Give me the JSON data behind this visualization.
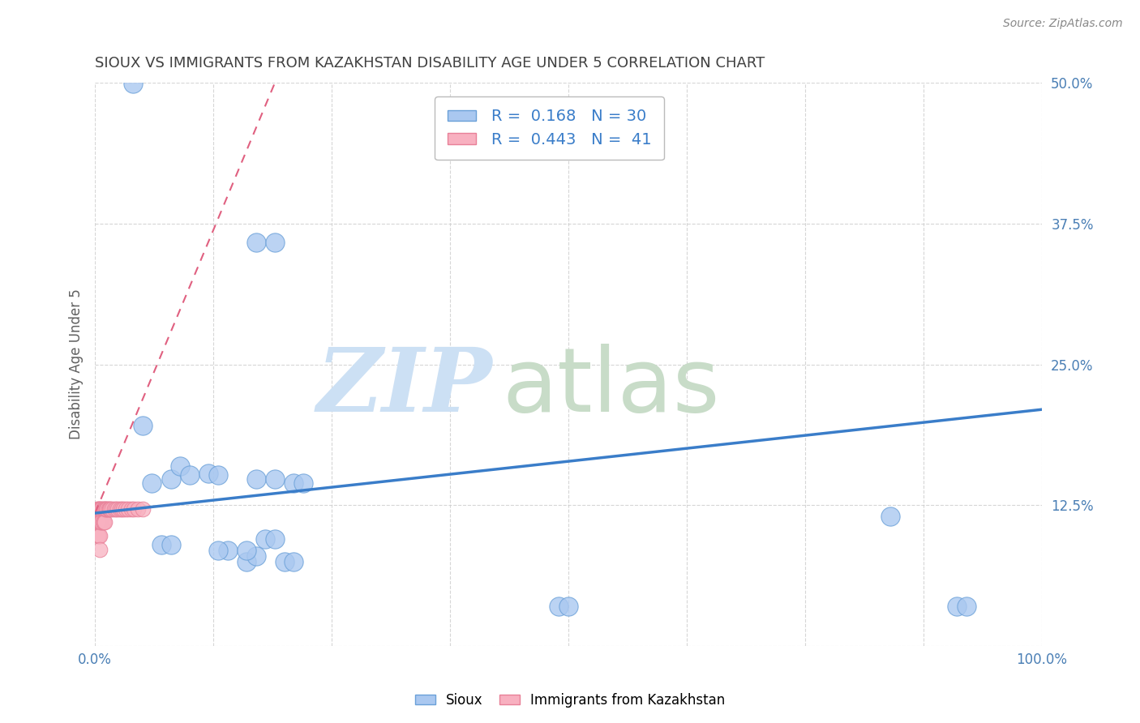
{
  "title": "SIOUX VS IMMIGRANTS FROM KAZAKHSTAN DISABILITY AGE UNDER 5 CORRELATION CHART",
  "source": "Source: ZipAtlas.com",
  "ylabel": "Disability Age Under 5",
  "xlim": [
    0,
    1.0
  ],
  "ylim": [
    0,
    0.5
  ],
  "xticks": [
    0.0,
    0.125,
    0.25,
    0.375,
    0.5,
    0.625,
    0.75,
    0.875,
    1.0
  ],
  "xticklabels": [
    "0.0%",
    "",
    "",
    "",
    "",
    "",
    "",
    "",
    "100.0%"
  ],
  "yticks": [
    0.0,
    0.125,
    0.25,
    0.375,
    0.5
  ],
  "yticklabels": [
    "",
    "12.5%",
    "25.0%",
    "37.5%",
    "50.0%"
  ],
  "sioux_R": 0.168,
  "sioux_N": 30,
  "kaz_R": 0.443,
  "kaz_N": 41,
  "sioux_color": "#aac8f0",
  "sioux_edge_color": "#6aa0d8",
  "sioux_line_color": "#3a7dc9",
  "kaz_color": "#f8b0c0",
  "kaz_edge_color": "#e88098",
  "kaz_line_color": "#e06080",
  "legend_text_color": "#3a7dc9",
  "watermark_zip_color": "#cce0f4",
  "watermark_atlas_color": "#c8dcc8",
  "background_color": "#ffffff",
  "grid_color": "#cccccc",
  "title_color": "#404040",
  "sioux_x": [
    0.04,
    0.17,
    0.19,
    0.05,
    0.06,
    0.08,
    0.09,
    0.1,
    0.12,
    0.13,
    0.17,
    0.19,
    0.21,
    0.22,
    0.18,
    0.19,
    0.07,
    0.08,
    0.14,
    0.16,
    0.17,
    0.2,
    0.21,
    0.49,
    0.5,
    0.84,
    0.91,
    0.92,
    0.13,
    0.16
  ],
  "sioux_y": [
    0.499,
    0.358,
    0.358,
    0.196,
    0.145,
    0.148,
    0.16,
    0.152,
    0.153,
    0.152,
    0.148,
    0.148,
    0.145,
    0.145,
    0.095,
    0.095,
    0.09,
    0.09,
    0.085,
    0.075,
    0.08,
    0.075,
    0.075,
    0.035,
    0.035,
    0.115,
    0.035,
    0.035,
    0.085,
    0.085
  ],
  "kaz_x": [
    0.002,
    0.002,
    0.003,
    0.003,
    0.003,
    0.004,
    0.004,
    0.004,
    0.005,
    0.005,
    0.005,
    0.005,
    0.006,
    0.006,
    0.007,
    0.007,
    0.008,
    0.008,
    0.009,
    0.009,
    0.01,
    0.01,
    0.011,
    0.012,
    0.013,
    0.014,
    0.015,
    0.016,
    0.018,
    0.02,
    0.022,
    0.024,
    0.026,
    0.028,
    0.03,
    0.032,
    0.035,
    0.038,
    0.041,
    0.045,
    0.05
  ],
  "kaz_y": [
    0.122,
    0.11,
    0.122,
    0.11,
    0.098,
    0.122,
    0.11,
    0.098,
    0.122,
    0.11,
    0.098,
    0.086,
    0.122,
    0.11,
    0.122,
    0.11,
    0.122,
    0.11,
    0.122,
    0.11,
    0.122,
    0.11,
    0.122,
    0.122,
    0.122,
    0.122,
    0.122,
    0.122,
    0.122,
    0.122,
    0.122,
    0.122,
    0.122,
    0.122,
    0.122,
    0.122,
    0.122,
    0.122,
    0.122,
    0.122,
    0.122
  ],
  "sioux_line_x0": 0.0,
  "sioux_line_y0": 0.118,
  "sioux_line_x1": 1.0,
  "sioux_line_y1": 0.21,
  "kaz_line_x0": 0.0,
  "kaz_line_y0": 0.118,
  "kaz_line_x1": 0.19,
  "kaz_line_y1": 0.5
}
